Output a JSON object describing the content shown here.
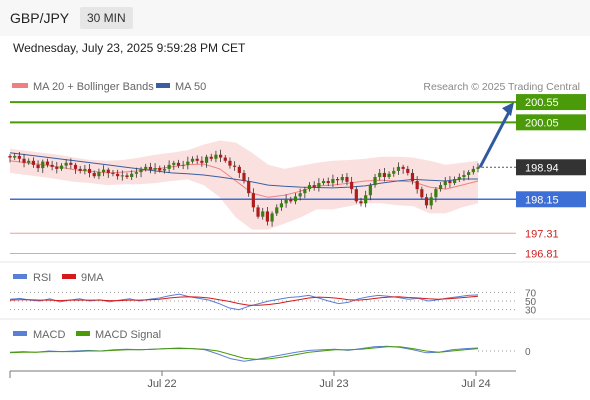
{
  "header": {
    "pair": "GBP/JPY",
    "timeframe": "30 MIN",
    "datetime": "Wednesday, July 23, 2025 9:59:28 PM CET"
  },
  "main_legend": {
    "ma20_label": "MA 20 + Bollinger Bands",
    "ma50_label": "MA 50",
    "credit": "Research © 2025 Trading Central"
  },
  "rsi_legend": {
    "rsi_label": "RSI",
    "ma_label": "9MA"
  },
  "macd_legend": {
    "macd_label": "MACD",
    "signal_label": "MACD Signal"
  },
  "colors": {
    "up_candle": "#3a7d12",
    "down_candle": "#b01c1c",
    "ma20": "#f08080",
    "ma50": "#3a5fa0",
    "bollinger_fill": "#f9cccc",
    "resistance": "#4a9a0a",
    "support": "#3d6fd6",
    "pivot_line": "#e8a0a0",
    "pivot_text": "#cc2222",
    "current_price_bg": "#333333",
    "arrow": "#2f5aa0",
    "rsi": "#5a7fd6",
    "rsi_ma": "#d61a1a",
    "macd": "#5a7fd6",
    "macd_signal": "#4a9a0a"
  },
  "chart_data": [
    {
      "type": "candlestick",
      "title": "GBP/JPY 30 MIN",
      "x_ticks": [
        "Jul 22",
        "Jul 23",
        "Jul 24"
      ],
      "y_range": [
        196.7,
        200.7
      ],
      "current_price": 198.94,
      "levels": [
        {
          "label": "200.55",
          "value": 200.55,
          "kind": "resistance"
        },
        {
          "label": "200.05",
          "value": 200.05,
          "kind": "resistance"
        },
        {
          "label": "198.94",
          "value": 198.94,
          "kind": "current"
        },
        {
          "label": "198.15",
          "value": 198.15,
          "kind": "support"
        },
        {
          "label": "197.31",
          "value": 197.31,
          "kind": "pivot"
        },
        {
          "label": "196.81",
          "value": 196.81,
          "kind": "pivot"
        }
      ],
      "forecast_target": 200.55,
      "close_series": [
        199.18,
        199.22,
        199.15,
        199.05,
        199.1,
        199.0,
        198.92,
        199.08,
        199.0,
        198.95,
        198.9,
        198.98,
        199.05,
        199.0,
        198.9,
        198.85,
        198.9,
        198.8,
        198.72,
        198.82,
        198.88,
        198.8,
        198.78,
        198.72,
        198.74,
        198.7,
        198.78,
        198.82,
        198.9,
        198.95,
        198.88,
        198.92,
        198.86,
        198.9,
        199.0,
        199.05,
        198.98,
        199.0,
        199.08,
        199.15,
        199.1,
        199.05,
        199.2,
        199.15,
        199.25,
        199.18,
        199.1,
        198.98,
        198.95,
        198.8,
        198.6,
        198.3,
        197.95,
        197.72,
        197.85,
        197.6,
        197.8,
        197.95,
        198.05,
        198.15,
        198.1,
        198.22,
        198.3,
        198.4,
        198.5,
        198.45,
        198.55,
        198.6,
        198.55,
        198.65,
        198.62,
        198.7,
        198.58,
        198.4,
        198.1,
        198.05,
        198.25,
        198.5,
        198.7,
        198.8,
        198.7,
        198.78,
        198.85,
        198.95,
        198.9,
        198.8,
        198.6,
        198.4,
        198.2,
        198.0,
        198.2,
        198.4,
        198.5,
        198.6,
        198.55,
        198.65,
        198.7,
        198.75,
        198.82,
        198.9,
        198.94
      ],
      "ma50_series": [
        199.3,
        199.25,
        199.2,
        199.15,
        199.1,
        199.05,
        199.0,
        198.95,
        198.9,
        198.85,
        198.8,
        198.78,
        198.75,
        198.7,
        198.64,
        198.58,
        198.5,
        198.47,
        198.45,
        198.44,
        198.43,
        198.45,
        198.48,
        198.55,
        198.6,
        198.64,
        198.62,
        198.6,
        198.65,
        198.65
      ],
      "ma20_series": [
        199.1,
        199.05,
        199.0,
        198.95,
        198.88,
        198.84,
        198.8,
        198.82,
        198.85,
        198.9,
        198.95,
        199.0,
        199.02,
        198.9,
        198.6,
        198.3,
        198.2,
        198.25,
        198.35,
        198.48,
        198.5,
        198.55,
        198.6,
        198.62,
        198.6,
        198.58,
        198.45,
        198.4,
        198.5,
        198.6
      ],
      "bollinger_upper": [
        199.4,
        199.35,
        199.3,
        199.25,
        199.18,
        199.12,
        199.1,
        199.12,
        199.18,
        199.25,
        199.3,
        199.36,
        199.5,
        199.6,
        199.55,
        199.3,
        199.0,
        198.9,
        198.98,
        199.05,
        199.1,
        199.12,
        199.15,
        199.2,
        199.2,
        199.18,
        199.1,
        199.0,
        199.05,
        199.1
      ],
      "bollinger_lower": [
        198.8,
        198.75,
        198.7,
        198.64,
        198.58,
        198.55,
        198.5,
        198.52,
        198.52,
        198.55,
        198.6,
        198.64,
        198.5,
        198.2,
        197.7,
        197.4,
        197.4,
        197.55,
        197.7,
        197.9,
        197.9,
        197.98,
        198.05,
        198.05,
        198.0,
        197.98,
        197.8,
        197.8,
        197.95,
        198.05
      ]
    },
    {
      "type": "line",
      "title": "RSI",
      "y_ticks": [
        30,
        50,
        70
      ],
      "y_range": [
        20,
        80
      ],
      "series": [
        {
          "name": "RSI",
          "values": [
            54,
            56,
            52,
            50,
            55,
            48,
            52,
            55,
            50,
            53,
            48,
            52,
            55,
            50,
            54,
            57,
            62,
            66,
            60,
            56,
            52,
            44,
            34,
            30,
            38,
            44,
            50,
            54,
            58,
            60,
            63,
            57,
            50,
            44,
            47,
            55,
            60,
            63,
            61,
            58,
            54,
            56,
            50,
            53,
            57,
            60,
            63,
            64
          ]
        },
        {
          "name": "9MA",
          "values": [
            52,
            53,
            53,
            52,
            52,
            51,
            52,
            52,
            52,
            52,
            51,
            51,
            52,
            52,
            53,
            54,
            57,
            59,
            60,
            59,
            57,
            53,
            49,
            44,
            40,
            40,
            42,
            45,
            49,
            53,
            57,
            59,
            58,
            56,
            53,
            52,
            54,
            57,
            59,
            60,
            58,
            57,
            55,
            54,
            55,
            57,
            59,
            61
          ]
        }
      ]
    },
    {
      "type": "line",
      "title": "MACD",
      "y_ticks": [
        0
      ],
      "y_range": [
        -0.25,
        0.15
      ],
      "series": [
        {
          "name": "MACD",
          "values": [
            -0.02,
            -0.01,
            -0.02,
            0.0,
            -0.01,
            0.0,
            0.01,
            0.0,
            0.02,
            0.03,
            0.02,
            0.03,
            0.04,
            0.05,
            0.04,
            0.02,
            -0.05,
            -0.13,
            -0.17,
            -0.14,
            -0.1,
            -0.06,
            -0.02,
            0.01,
            0.02,
            0.03,
            0.01,
            0.04,
            0.07,
            0.08,
            0.06,
            0.02,
            -0.03,
            -0.02,
            0.02,
            0.04,
            0.05
          ]
        },
        {
          "name": "MACD Signal",
          "values": [
            -0.03,
            -0.02,
            -0.02,
            -0.01,
            -0.01,
            -0.01,
            0.0,
            0.0,
            0.01,
            0.02,
            0.02,
            0.03,
            0.04,
            0.04,
            0.04,
            0.03,
            0.0,
            -0.06,
            -0.12,
            -0.14,
            -0.13,
            -0.1,
            -0.06,
            -0.02,
            0.0,
            0.02,
            0.02,
            0.03,
            0.05,
            0.07,
            0.07,
            0.04,
            0.0,
            -0.02,
            0.0,
            0.02,
            0.04
          ]
        }
      ]
    }
  ]
}
